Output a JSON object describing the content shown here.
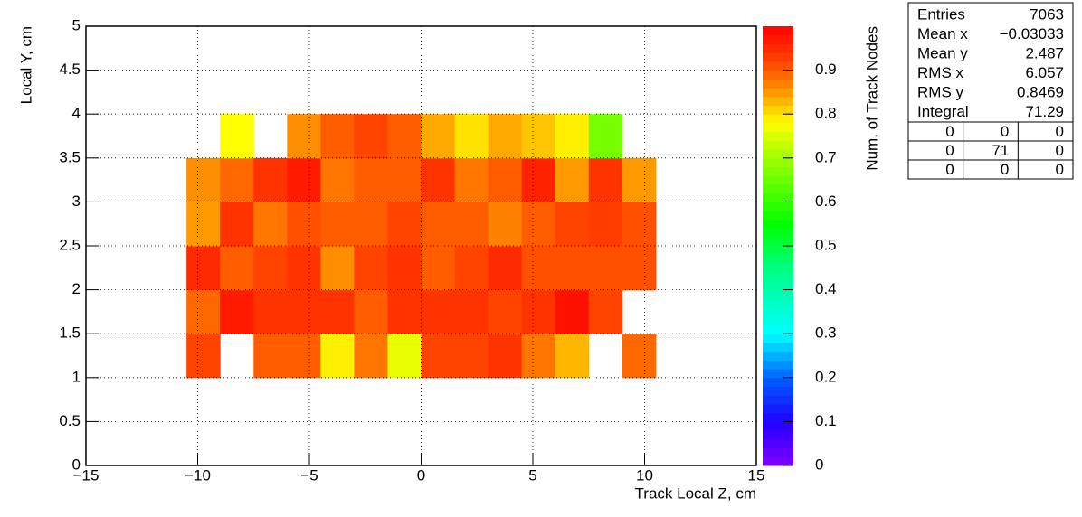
{
  "chart_data": {
    "type": "heatmap",
    "xlabel": "Track Local Z, cm",
    "ylabel": "Local Y, cm",
    "zlabel": "Num. of Track Nodes",
    "xlim": [
      -15,
      15
    ],
    "ylim": [
      0,
      5
    ],
    "zlim": [
      0,
      1
    ],
    "xticks": [
      {
        "value": -15,
        "label": "−15"
      },
      {
        "value": -10,
        "label": "−10"
      },
      {
        "value": -5,
        "label": "−5"
      },
      0,
      5,
      10,
      15
    ],
    "yticks": [
      0,
      0.5,
      1,
      1.5,
      2,
      2.5,
      3,
      3.5,
      4,
      4.5,
      5
    ],
    "zticks": [
      0,
      0.1,
      0.2,
      0.3,
      0.4,
      0.5,
      0.6,
      0.7,
      0.8,
      0.9
    ],
    "grid": true,
    "colorscale": [
      [
        0,
        "#8000ff"
      ],
      [
        0.1,
        "#2000ff"
      ],
      [
        0.2,
        "#0060ff"
      ],
      [
        0.3,
        "#00ffff"
      ],
      [
        0.45,
        "#00ff80"
      ],
      [
        0.55,
        "#00ff00"
      ],
      [
        0.7,
        "#a0ff00"
      ],
      [
        0.78,
        "#ffff00"
      ],
      [
        0.85,
        "#ff9900"
      ],
      [
        0.92,
        "#ff4400"
      ],
      [
        1,
        "#ff0000"
      ]
    ],
    "xbins": [
      -10.5,
      -9,
      -7.5,
      -6,
      -4.5,
      -3,
      -1.5,
      0,
      1.5,
      3,
      4.5,
      6,
      7.5,
      9,
      10.5
    ],
    "ybins": [
      1,
      1.5,
      2,
      2.5,
      3,
      3.5,
      4
    ],
    "z": [
      [
        0.92,
        null,
        0.9,
        0.9,
        0.79,
        0.88,
        0.76,
        0.92,
        0.92,
        0.94,
        0.88,
        0.83,
        null,
        0.89
      ],
      [
        0.89,
        0.97,
        0.94,
        0.94,
        0.94,
        0.9,
        0.94,
        0.94,
        0.94,
        0.92,
        0.94,
        0.98,
        0.92,
        null
      ],
      [
        0.95,
        0.9,
        0.92,
        0.94,
        0.86,
        0.92,
        0.94,
        0.9,
        0.92,
        0.95,
        0.91,
        0.91,
        0.91,
        0.91
      ],
      [
        0.85,
        0.94,
        0.88,
        0.91,
        0.9,
        0.9,
        0.92,
        0.9,
        0.9,
        0.87,
        0.9,
        0.92,
        0.93,
        0.91
      ],
      [
        0.86,
        0.89,
        0.94,
        0.97,
        0.88,
        0.9,
        0.9,
        0.94,
        0.88,
        0.9,
        0.96,
        0.85,
        0.94,
        0.85
      ],
      [
        null,
        0.78,
        null,
        0.86,
        0.9,
        0.92,
        0.9,
        0.84,
        0.8,
        0.84,
        0.82,
        0.79,
        0.66,
        null
      ]
    ],
    "stats": {
      "rows": [
        [
          "Entries",
          "7063"
        ],
        [
          "Mean x",
          "−0.03033"
        ],
        [
          "Mean y",
          "2.487"
        ],
        [
          "RMS x",
          "6.057"
        ],
        [
          "RMS y",
          "0.8469"
        ],
        [
          "Integral",
          "71.29"
        ]
      ],
      "table": [
        [
          0,
          0,
          0
        ],
        [
          0,
          71,
          0
        ],
        [
          0,
          0,
          0
        ]
      ]
    }
  }
}
